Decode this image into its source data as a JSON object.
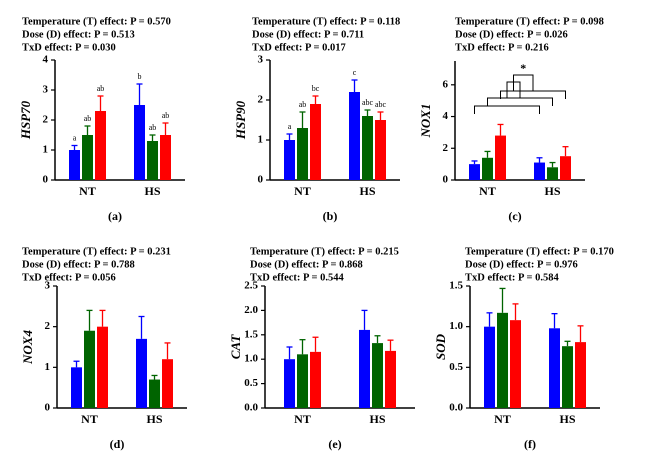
{
  "chart_data": [
    {
      "type": "bar",
      "annotations": [
        "Temperature (T) effect: P = 0.570",
        "Dose (D) effect: P = 0.513",
        "TxD effect: P = 0.030"
      ],
      "ylabel": "HSP70",
      "label": "(a)",
      "categories": [
        "NT",
        "HS"
      ],
      "ylim": [
        0,
        4
      ],
      "yticks": [
        0,
        1,
        2,
        3,
        4
      ],
      "series": [
        {
          "color": "#0000ff",
          "values": [
            1.0,
            2.5
          ],
          "errors": [
            0.15,
            0.7
          ],
          "labels": [
            "a",
            "b"
          ]
        },
        {
          "color": "#006400",
          "values": [
            1.5,
            1.3
          ],
          "errors": [
            0.3,
            0.2
          ],
          "labels": [
            "ab",
            "ab"
          ]
        },
        {
          "color": "#ff0000",
          "values": [
            2.3,
            1.5
          ],
          "errors": [
            0.5,
            0.4
          ],
          "labels": [
            "ab",
            "ab"
          ]
        }
      ]
    },
    {
      "type": "bar",
      "annotations": [
        "Temperature (T) effect: P = 0.118",
        "Dose (D) effect: P = 0.711",
        "TxD effect: P = 0.017"
      ],
      "ylabel": "HSP90",
      "label": "(b)",
      "categories": [
        "NT",
        "HS"
      ],
      "ylim": [
        0,
        3
      ],
      "yticks": [
        0,
        1,
        2,
        3
      ],
      "series": [
        {
          "color": "#0000ff",
          "values": [
            1.0,
            2.2
          ],
          "errors": [
            0.15,
            0.3
          ],
          "labels": [
            "a",
            "c"
          ]
        },
        {
          "color": "#006400",
          "values": [
            1.3,
            1.6
          ],
          "errors": [
            0.4,
            0.15
          ],
          "labels": [
            "ab",
            "abc"
          ]
        },
        {
          "color": "#ff0000",
          "values": [
            1.9,
            1.5
          ],
          "errors": [
            0.2,
            0.2
          ],
          "labels": [
            "bc",
            "abc"
          ]
        }
      ]
    },
    {
      "type": "bar",
      "annotations": [
        "Temperature (T) effect: P = 0.098",
        "Dose (D) effect: P = 0.026",
        "TxD effect: P = 0.216"
      ],
      "ylabel": "NOX1",
      "label": "(c)",
      "categories": [
        "NT",
        "HS"
      ],
      "ylim": [
        0,
        7.5
      ],
      "yticks": [
        0,
        2,
        4,
        6
      ],
      "significance": "*",
      "series": [
        {
          "color": "#0000ff",
          "values": [
            1.0,
            1.1
          ],
          "errors": [
            0.2,
            0.3
          ]
        },
        {
          "color": "#006400",
          "values": [
            1.4,
            0.8
          ],
          "errors": [
            0.4,
            0.3
          ]
        },
        {
          "color": "#ff0000",
          "values": [
            2.8,
            1.5
          ],
          "errors": [
            0.7,
            0.6
          ]
        }
      ]
    },
    {
      "type": "bar",
      "annotations": [
        "Temperature (T) effect: P = 0.231",
        "Dose (D) effect: P = 0.788",
        "TxD effect: P = 0.056"
      ],
      "ylabel": "NOX4",
      "label": "(d)",
      "categories": [
        "NT",
        "HS"
      ],
      "ylim": [
        0,
        3
      ],
      "yticks": [
        0,
        1,
        2,
        3
      ],
      "series": [
        {
          "color": "#0000ff",
          "values": [
            1.0,
            1.7
          ],
          "errors": [
            0.15,
            0.55
          ]
        },
        {
          "color": "#006400",
          "values": [
            1.9,
            0.7
          ],
          "errors": [
            0.5,
            0.1
          ]
        },
        {
          "color": "#ff0000",
          "values": [
            2.0,
            1.2
          ],
          "errors": [
            0.4,
            0.4
          ]
        }
      ]
    },
    {
      "type": "bar",
      "annotations": [
        "Temperature (T) effect: P = 0.215",
        "Dose (D) effect: P = 0.868",
        "TxD effect: P = 0.544"
      ],
      "ylabel": "CAT",
      "label": "(e)",
      "categories": [
        "NT",
        "HS"
      ],
      "ylim": [
        0,
        2.5
      ],
      "yticks": [
        {
          "value": 0,
          "label": "0.0"
        },
        0.5,
        {
          "value": 1,
          "label": "1.0"
        },
        1.5,
        {
          "value": 2,
          "label": "2.0"
        },
        2.5
      ],
      "series": [
        {
          "color": "#0000ff",
          "values": [
            1.0,
            1.6
          ],
          "errors": [
            0.25,
            0.4
          ]
        },
        {
          "color": "#006400",
          "values": [
            1.1,
            1.33
          ],
          "errors": [
            0.3,
            0.15
          ]
        },
        {
          "color": "#ff0000",
          "values": [
            1.15,
            1.17
          ],
          "errors": [
            0.3,
            0.22
          ]
        }
      ]
    },
    {
      "type": "bar",
      "annotations": [
        "Temperature (T) effect: P = 0.170",
        "Dose (D) effect: P = 0.976",
        "TxD effect: P = 0.584"
      ],
      "ylabel": "SOD",
      "label": "(f)",
      "categories": [
        "NT",
        "HS"
      ],
      "ylim": [
        0,
        1.5
      ],
      "yticks": [
        {
          "value": 0,
          "label": "0.0"
        },
        0.5,
        {
          "value": 1,
          "label": "1.0"
        },
        1.5
      ],
      "series": [
        {
          "color": "#0000ff",
          "values": [
            1.0,
            0.98
          ],
          "errors": [
            0.17,
            0.18
          ]
        },
        {
          "color": "#006400",
          "values": [
            1.17,
            0.76
          ],
          "errors": [
            0.3,
            0.06
          ]
        },
        {
          "color": "#ff0000",
          "values": [
            1.08,
            0.81
          ],
          "errors": [
            0.2,
            0.2
          ]
        }
      ]
    }
  ]
}
